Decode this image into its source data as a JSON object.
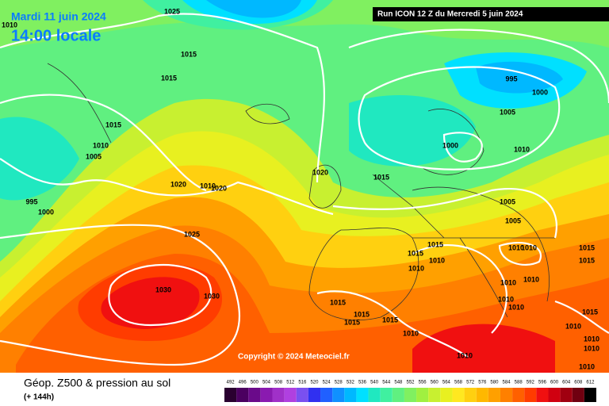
{
  "header": {
    "date": "Mardi 11 juin 2024",
    "time": "14:00 locale",
    "run": "Run ICON 12 Z du Mercredi 5 juin 2024"
  },
  "copyright": "Copyright © 2024 Meteociel.fr",
  "footer": {
    "title": "Géop. Z500 & pression au sol",
    "subtitle": "(+ 144h)"
  },
  "isobar_labels": [
    "1025",
    "1010",
    "1015",
    "1015",
    "1015",
    "1010",
    "1005",
    "995",
    "1000",
    "1020",
    "1010",
    "1020",
    "1025",
    "1030",
    "1030",
    "995",
    "1000",
    "1005",
    "1000",
    "1010",
    "1020",
    "1015",
    "1005",
    "1005",
    "1015",
    "1015",
    "1010",
    "1010",
    "1010",
    "1010",
    "1015",
    "1015",
    "1010",
    "1010",
    "1010",
    "1010",
    "1015",
    "1015",
    "1015",
    "1015",
    "1010",
    "1010",
    "1015",
    "1010",
    "1010",
    "1010",
    "1010"
  ],
  "legend": {
    "levels": [
      492,
      496,
      500,
      504,
      508,
      512,
      516,
      520,
      524,
      528,
      532,
      536,
      540,
      544,
      548,
      552,
      556,
      560,
      564,
      568,
      572,
      576,
      580,
      584,
      588,
      592,
      596,
      600,
      604,
      608,
      612
    ],
    "colors": [
      "#2a0030",
      "#4b0060",
      "#6a0a8a",
      "#8a1ab0",
      "#a030c8",
      "#b040e0",
      "#7a50f0",
      "#3030f0",
      "#2060ff",
      "#1090ff",
      "#00b8ff",
      "#00e0ff",
      "#20e8c0",
      "#40f0a0",
      "#60f080",
      "#80f060",
      "#a0f040",
      "#c8f030",
      "#e8f020",
      "#ffe820",
      "#ffd010",
      "#ffb800",
      "#ffa000",
      "#ff8000",
      "#ff6000",
      "#ff3c00",
      "#f01010",
      "#d00010",
      "#a00010",
      "#700010",
      "#000000"
    ]
  }
}
